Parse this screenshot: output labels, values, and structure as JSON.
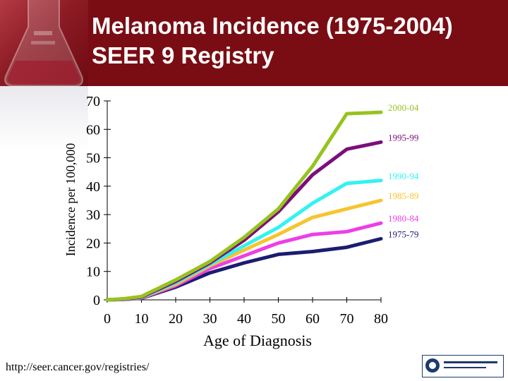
{
  "header": {
    "title_line1": "Melanoma Incidence (1975-2004)",
    "title_line2": "SEER 9 Registry"
  },
  "footer": {
    "url": "http://seer.cancer.gov/registries/"
  },
  "colors": {
    "header_bg": "#7a0d14"
  },
  "chart_data": {
    "type": "line",
    "title": "Melanoma Incidence (1975-2004) SEER 9 Registry",
    "xlabel": "Age of Diagnosis",
    "ylabel": "Incidence per 100,000",
    "xlim": [
      0,
      80
    ],
    "ylim": [
      0,
      70
    ],
    "x_ticks": [
      "0",
      "10",
      "20",
      "30",
      "40",
      "50",
      "60",
      "70",
      "80"
    ],
    "y_ticks": [
      "0",
      "10",
      "20",
      "30",
      "40",
      "50",
      "60",
      "70"
    ],
    "x": [
      0,
      5,
      10,
      20,
      30,
      40,
      50,
      60,
      70,
      80
    ],
    "grid": false,
    "series": [
      {
        "name": "1975-79",
        "color": "#1c1c70",
        "values": [
          0,
          0.2,
          0.6,
          4.5,
          9.5,
          13,
          16,
          17,
          18.5,
          21.5
        ]
      },
      {
        "name": "1980-84",
        "color": "#ee3ee6",
        "values": [
          0,
          0.2,
          0.7,
          5,
          11,
          15.5,
          20,
          23,
          24,
          27
        ]
      },
      {
        "name": "1985-89",
        "color": "#f6c42e",
        "values": [
          0,
          0.3,
          0.8,
          5.5,
          12,
          17.5,
          23,
          29,
          32,
          35
        ]
      },
      {
        "name": "1990-94",
        "color": "#33f2f2",
        "values": [
          0,
          0.3,
          0.9,
          6,
          12.5,
          19,
          25.5,
          34,
          41,
          42
        ]
      },
      {
        "name": "1995-99",
        "color": "#7d0d7a",
        "values": [
          0,
          0.3,
          1,
          6.5,
          13,
          21,
          31,
          44,
          53,
          55.5
        ]
      },
      {
        "name": "2000-04",
        "color": "#96c31e",
        "values": [
          0,
          0.4,
          1.2,
          7,
          13.5,
          22,
          32,
          47,
          65.5,
          66
        ]
      }
    ]
  }
}
